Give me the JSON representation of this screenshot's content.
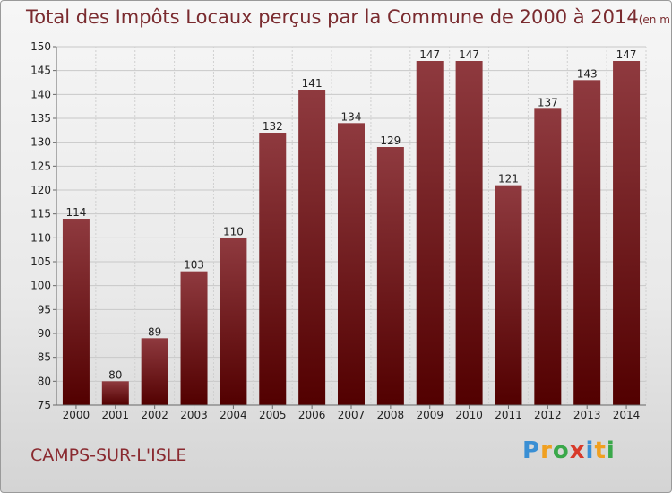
{
  "title": "Total des Impôts Locaux perçus par la Commune de 2000 à 2014",
  "unit_note": "(en milliers d'€)",
  "commune": "CAMPS-SUR-L'ISLE",
  "logo": {
    "letters": [
      "P",
      "r",
      "o",
      "x",
      "i",
      "t",
      "i"
    ],
    "colors": [
      "#3a8fd4",
      "#f0a020",
      "#3aa84a",
      "#d83a2a",
      "#3a8fd4",
      "#f0a020",
      "#3aa84a"
    ]
  },
  "colors": {
    "bar_top": "#8f3a3f",
    "bar_bottom": "#520000",
    "title": "#7a2b2f"
  },
  "chart_data": {
    "type": "bar",
    "title": "Total des Impôts Locaux perçus par la Commune de 2000 à 2014",
    "xlabel": "",
    "ylabel": "",
    "categories": [
      "2000",
      "2001",
      "2002",
      "2003",
      "2004",
      "2005",
      "2006",
      "2007",
      "2008",
      "2009",
      "2010",
      "2011",
      "2012",
      "2013",
      "2014"
    ],
    "values": [
      114,
      80,
      89,
      103,
      110,
      132,
      141,
      134,
      129,
      147,
      147,
      121,
      137,
      143,
      147
    ],
    "ylim": [
      75,
      150
    ],
    "yticks": [
      75,
      80,
      85,
      90,
      95,
      100,
      105,
      110,
      115,
      120,
      125,
      130,
      135,
      140,
      145,
      150
    ],
    "grid": true
  }
}
